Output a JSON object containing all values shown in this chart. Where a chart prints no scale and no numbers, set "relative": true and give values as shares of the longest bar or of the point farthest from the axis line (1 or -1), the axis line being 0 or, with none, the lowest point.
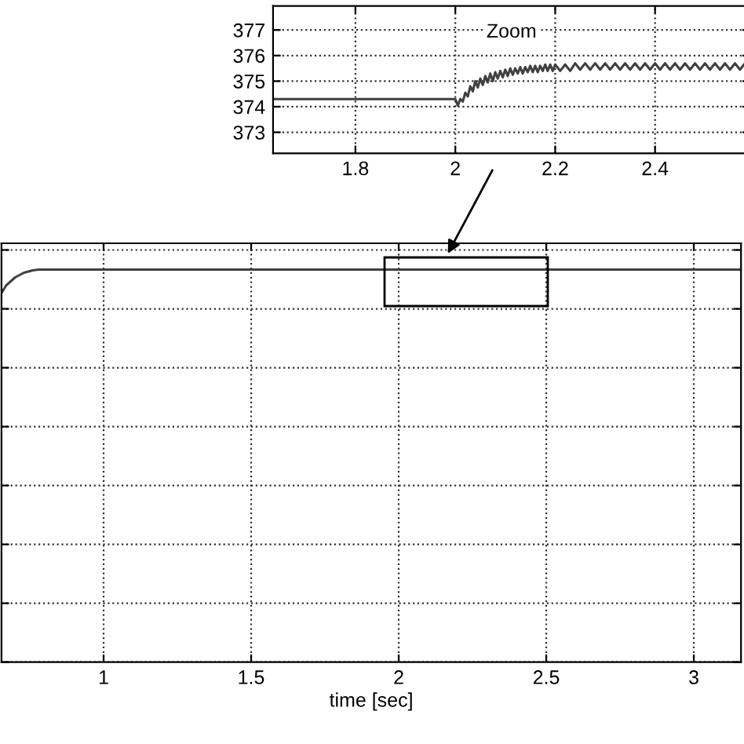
{
  "chart_data": [
    {
      "type": "line",
      "relative": true,
      "xlabel": "time [sec]",
      "xlim": [
        0.654,
        3.16
      ],
      "xticks": [
        1,
        1.5,
        2,
        2.5,
        3
      ],
      "grid": true,
      "tick_labels": "x",
      "line_style": "solid",
      "marker": "none",
      "series": [
        {
          "color": "#404040",
          "x": [
            0.654,
            0.67,
            0.7,
            0.73,
            0.76,
            0.78,
            1,
            2,
            3,
            3.16
          ],
          "values": [
            0.94,
            0.96,
            0.98,
            0.992,
            0.998,
            1,
            1,
            1,
            1,
            1
          ]
        }
      ]
    },
    {
      "type": "line",
      "xlim": [
        1.635,
        2.59
      ],
      "ylim": [
        372.18,
        377.94
      ],
      "xticks": [
        1.8,
        2,
        2.2,
        2.4
      ],
      "yticks": [
        373,
        374,
        375,
        376,
        377
      ],
      "grid": true,
      "annotations": [
        "Zoom"
      ],
      "line_style": "solid",
      "marker": "none",
      "series": [
        {
          "color": "#404040",
          "x": [
            1.635,
            1.9,
            2.0,
            2.005,
            2.01,
            2.015,
            2.02,
            2.025,
            2.03,
            2.035,
            2.04,
            2.045,
            2.05,
            2.055,
            2.06,
            2.065,
            2.07,
            2.075,
            2.08,
            2.085,
            2.09,
            2.095,
            2.1,
            2.105,
            2.11,
            2.115,
            2.12,
            2.125,
            2.13,
            2.135,
            2.14,
            2.145,
            2.15,
            2.155,
            2.16,
            2.165,
            2.17,
            2.175,
            2.18,
            2.185,
            2.19,
            2.195,
            2.2,
            2.21,
            2.22,
            2.23,
            2.24,
            2.25,
            2.26,
            2.27,
            2.28,
            2.29,
            2.3,
            2.31,
            2.32,
            2.33,
            2.34,
            2.35,
            2.36,
            2.37,
            2.38,
            2.39,
            2.4,
            2.41,
            2.42,
            2.43,
            2.44,
            2.45,
            2.46,
            2.47,
            2.48,
            2.49,
            2.5,
            2.51,
            2.52,
            2.53,
            2.54,
            2.55,
            2.56,
            2.57,
            2.58
          ],
          "values": [
            374.3,
            374.3,
            374.3,
            374.05,
            374.3,
            374.2,
            374.55,
            374.4,
            374.8,
            374.6,
            375.0,
            374.75,
            375.1,
            374.85,
            375.2,
            374.95,
            375.3,
            375.0,
            375.35,
            375.1,
            375.4,
            375.15,
            375.45,
            375.2,
            375.5,
            375.25,
            375.5,
            375.3,
            375.55,
            375.3,
            375.55,
            375.35,
            375.6,
            375.35,
            375.6,
            375.35,
            375.6,
            375.4,
            375.65,
            375.4,
            375.65,
            375.4,
            375.65,
            375.4,
            375.65,
            375.4,
            375.7,
            375.45,
            375.7,
            375.45,
            375.7,
            375.45,
            375.7,
            375.45,
            375.7,
            375.45,
            375.7,
            375.45,
            375.7,
            375.45,
            375.7,
            375.45,
            375.7,
            375.45,
            375.7,
            375.45,
            375.7,
            375.45,
            375.7,
            375.45,
            375.7,
            375.45,
            375.7,
            375.45,
            375.7,
            375.45,
            375.7,
            375.45,
            375.7,
            375.45,
            375.7
          ]
        }
      ]
    }
  ]
}
